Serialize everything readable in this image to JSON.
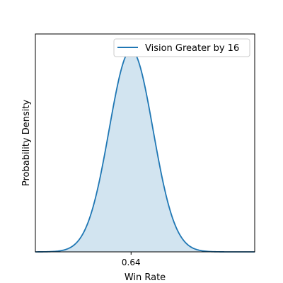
{
  "chart_data": {
    "type": "area",
    "title": "",
    "xlabel": "Win Rate",
    "ylabel": "Probability Density",
    "xlim": [
      0.4,
      0.95
    ],
    "ylim": [
      0,
      1.08
    ],
    "x_ticks": [
      0.64
    ],
    "x_tick_labels": [
      "0.64"
    ],
    "y_ticks": [],
    "grid": false,
    "legend_position": "top-right",
    "series": [
      {
        "name": "Vision Greater by 16",
        "color": "#1f77b4",
        "fill_color": "#1f77b4",
        "fill_alpha": 0.2,
        "distribution": "normal",
        "mean": 0.64,
        "std": 0.055,
        "peak_density": 1.0
      }
    ]
  }
}
